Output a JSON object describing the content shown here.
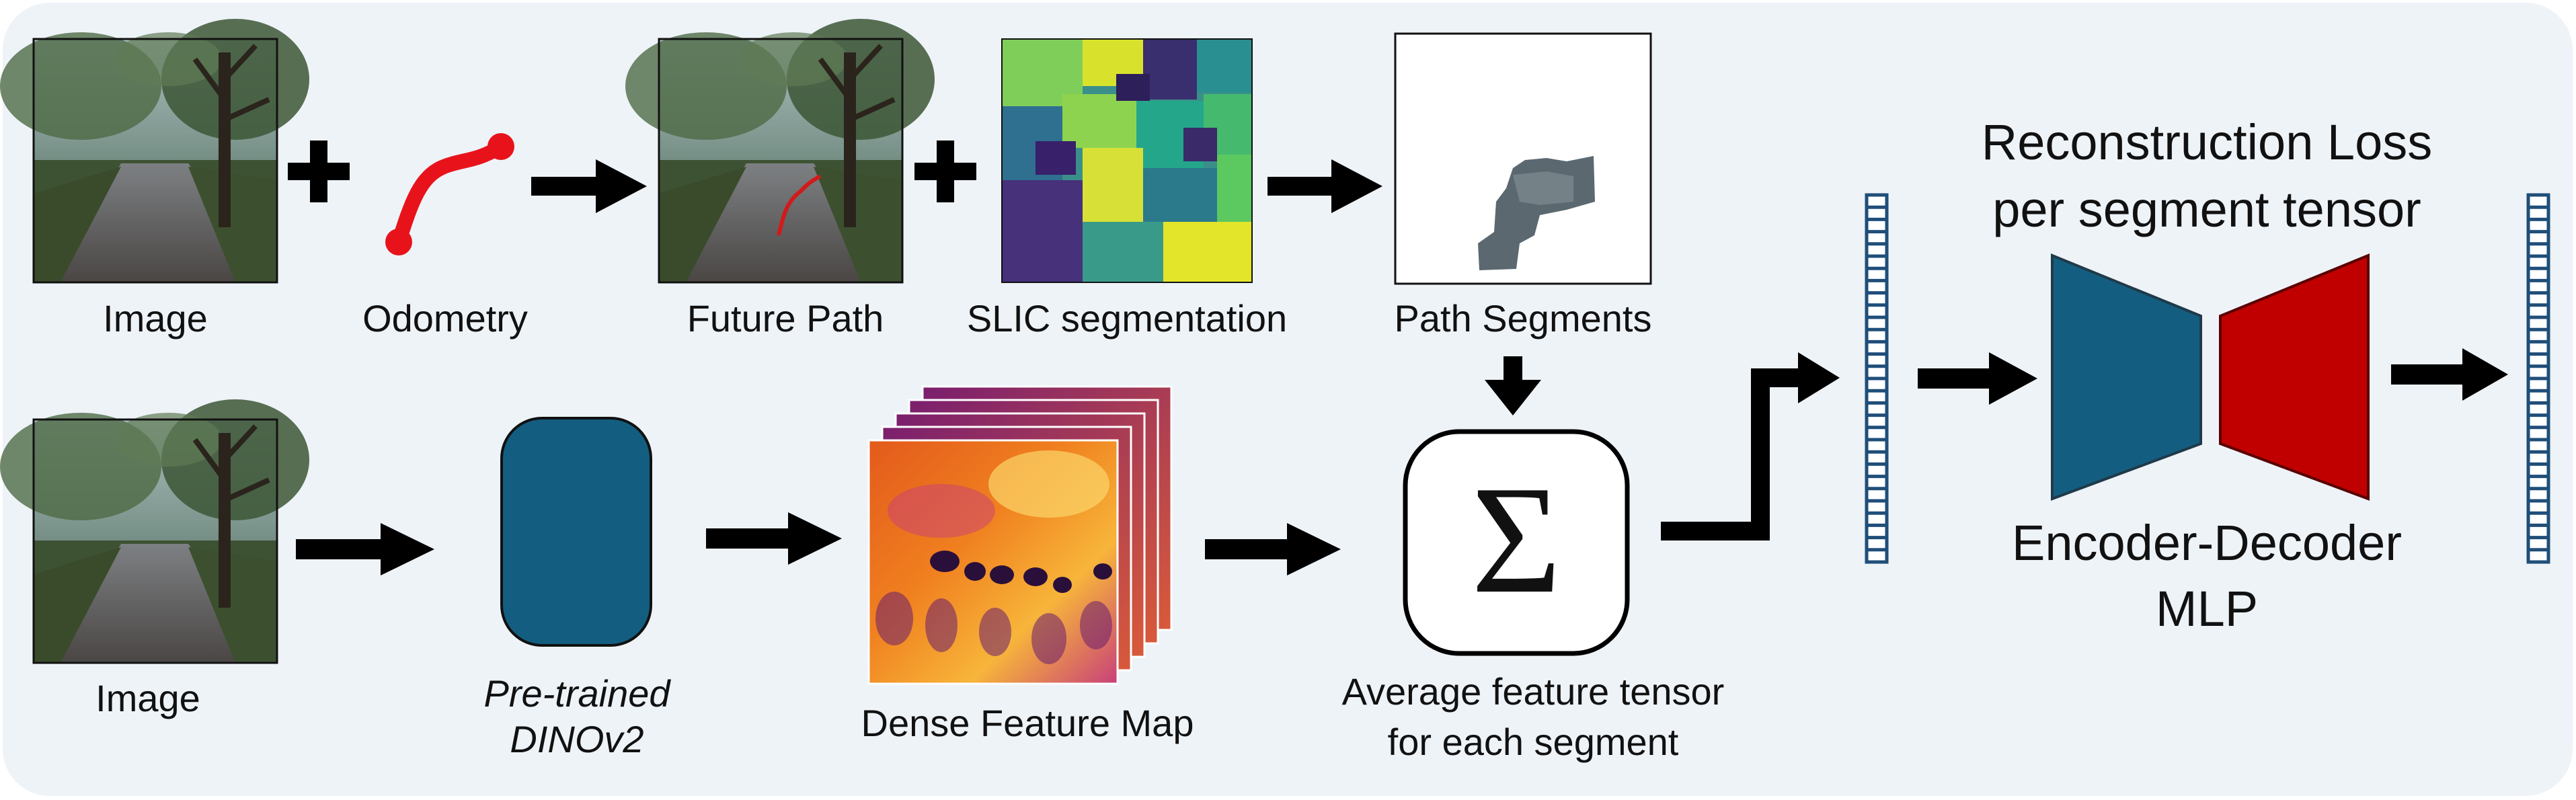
{
  "diagram": {
    "top_row": {
      "image_label": "Image",
      "odometry_label": "Odometry",
      "future_path_label": "Future Path",
      "slic_label": "SLIC segmentation",
      "path_segments_label": "Path Segments"
    },
    "bottom_row": {
      "image_label": "Image",
      "model_label_line1": "Pre-trained",
      "model_label_line2": "DINOv2",
      "feature_map_label": "Dense Feature Map",
      "sum_symbol": "Σ",
      "average_label_line1": "Average feature tensor",
      "average_label_line2": "for each segment"
    },
    "right_block": {
      "loss_label_line1": "Reconstruction Loss",
      "loss_label_line2": "per segment tensor",
      "mlp_label_line1": "Encoder-Decoder",
      "mlp_label_line2": "MLP"
    },
    "colors": {
      "panel_bg": "#eef3f8",
      "encoder": "#135e80",
      "decoder": "#c00000",
      "tensor_border": "#1f4e79",
      "arrow": "#000000",
      "odometry": "#e8131a"
    }
  }
}
